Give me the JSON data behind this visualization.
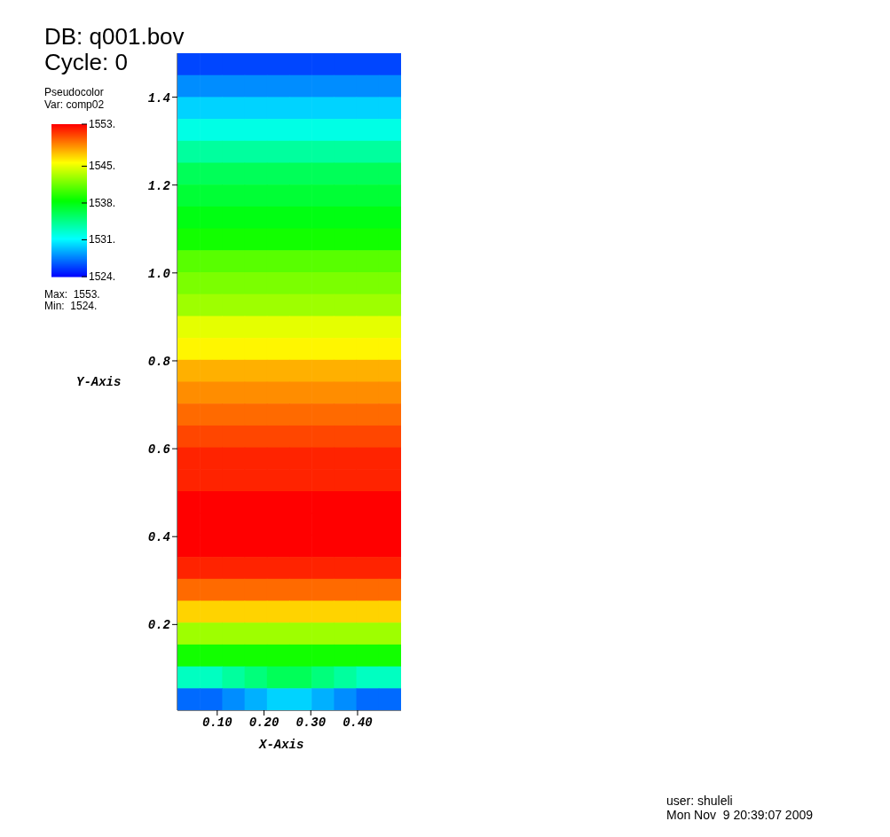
{
  "chart_data": {
    "type": "heatmap",
    "title": "DB: q001.bov",
    "subtitle": "Cycle: 0",
    "legend_title": "Pseudocolor",
    "clabel": "Var: comp02",
    "xlabel": "X-Axis",
    "ylabel": "Y-Axis",
    "annotations": [
      "Max:  1553.",
      "Min:  1524.",
      "user: shuleli",
      "Mon Nov  9 20:39:07 2009"
    ],
    "xlim": [
      0.015,
      0.493
    ],
    "xticks": [
      {
        "value": 0.1,
        "label": "0.10"
      },
      {
        "value": 0.2,
        "label": "0.20"
      },
      {
        "value": 0.3,
        "label": "0.30"
      },
      {
        "value": 0.4,
        "label": "0.40"
      }
    ],
    "ylim": [
      0.005,
      1.5
    ],
    "yticks": [
      {
        "value": 0.2,
        "label": "0.2"
      },
      {
        "value": 0.4,
        "label": "0.4"
      },
      {
        "value": 0.6,
        "label": "0.6"
      },
      {
        "value": 0.8,
        "label": "0.8"
      },
      {
        "value": 1,
        "label": "1.0"
      },
      {
        "value": 1.2,
        "label": "1.2"
      },
      {
        "value": 1.4,
        "label": "1.4"
      }
    ],
    "clim": [
      1524,
      1553
    ],
    "cticks": [
      {
        "value": 1524,
        "label": "1524."
      },
      {
        "value": 1531,
        "label": "1531."
      },
      {
        "value": 1538,
        "label": "1538."
      },
      {
        "value": 1545,
        "label": "1545."
      },
      {
        "value": 1553,
        "label": "1553."
      }
    ],
    "cells": [
      [
        1526,
        1526,
        1526,
        1526,
        1526,
        1526,
        1526,
        1526,
        1526,
        1526
      ],
      [
        1528,
        1528,
        1528,
        1528,
        1528,
        1528,
        1528,
        1528,
        1528,
        1528
      ],
      [
        1530,
        1530,
        1530,
        1530,
        1530,
        1530,
        1530,
        1530,
        1530,
        1530
      ],
      [
        1532,
        1532,
        1532,
        1532,
        1532,
        1532,
        1532,
        1532,
        1532,
        1532
      ],
      [
        1534,
        1534,
        1534,
        1534,
        1534,
        1534,
        1534,
        1534,
        1534,
        1534
      ],
      [
        1536,
        1536,
        1536,
        1536,
        1536,
        1536,
        1536,
        1536,
        1536,
        1536
      ],
      [
        1537,
        1537,
        1537,
        1537,
        1537,
        1537,
        1537,
        1537,
        1537,
        1537
      ],
      [
        1538,
        1538,
        1538,
        1538,
        1538,
        1538,
        1538,
        1538,
        1538,
        1538
      ],
      [
        1539,
        1539,
        1539,
        1539,
        1539,
        1539,
        1539,
        1539,
        1539,
        1539
      ],
      [
        1541,
        1541,
        1541,
        1541,
        1541,
        1541,
        1541,
        1541,
        1541,
        1541
      ],
      [
        1542,
        1542,
        1542,
        1542,
        1542,
        1542,
        1542,
        1542,
        1542,
        1542
      ],
      [
        1543,
        1543,
        1543,
        1543,
        1543,
        1543,
        1543,
        1543,
        1543,
        1543
      ],
      [
        1545,
        1545,
        1545,
        1545,
        1545,
        1545,
        1545,
        1545,
        1545,
        1545
      ],
      [
        1546,
        1546,
        1546,
        1546,
        1546,
        1546,
        1546,
        1546,
        1546,
        1546
      ],
      [
        1548,
        1548,
        1548,
        1548,
        1548,
        1548,
        1548,
        1548,
        1548,
        1548
      ],
      [
        1549,
        1549,
        1549,
        1549,
        1549,
        1549,
        1549,
        1549,
        1549,
        1549
      ],
      [
        1550,
        1550,
        1550,
        1550,
        1550,
        1550,
        1550,
        1550,
        1550,
        1550
      ],
      [
        1551,
        1551,
        1551,
        1551,
        1551,
        1551,
        1551,
        1551,
        1551,
        1551
      ],
      [
        1552,
        1552,
        1552,
        1552,
        1552,
        1552,
        1552,
        1552,
        1552,
        1552
      ],
      [
        1552,
        1552,
        1552,
        1552,
        1552,
        1552,
        1552,
        1552,
        1552,
        1552
      ],
      [
        1553,
        1553,
        1553,
        1553,
        1553,
        1553,
        1553,
        1553,
        1553,
        1553
      ],
      [
        1553,
        1553,
        1553,
        1553,
        1553,
        1553,
        1553,
        1553,
        1553,
        1553
      ],
      [
        1553,
        1553,
        1553,
        1553,
        1553,
        1553,
        1553,
        1553,
        1553,
        1553
      ],
      [
        1552,
        1552,
        1552,
        1552,
        1552,
        1552,
        1552,
        1552,
        1552,
        1552
      ],
      [
        1550,
        1550,
        1550,
        1550,
        1550,
        1550,
        1550,
        1550,
        1550,
        1550
      ],
      [
        1547,
        1547,
        1547,
        1547,
        1547,
        1547,
        1547,
        1547,
        1547,
        1547
      ],
      [
        1543,
        1543,
        1543,
        1543,
        1543,
        1543,
        1543,
        1543,
        1543,
        1543
      ],
      [
        1539,
        1539,
        1539,
        1539,
        1539,
        1539,
        1539,
        1539,
        1539,
        1539
      ],
      [
        1533,
        1533,
        1534,
        1535,
        1536,
        1536,
        1535,
        1534,
        1533,
        1533
      ],
      [
        1527,
        1527,
        1528,
        1529,
        1530,
        1530,
        1529,
        1528,
        1527,
        1527
      ]
    ]
  }
}
